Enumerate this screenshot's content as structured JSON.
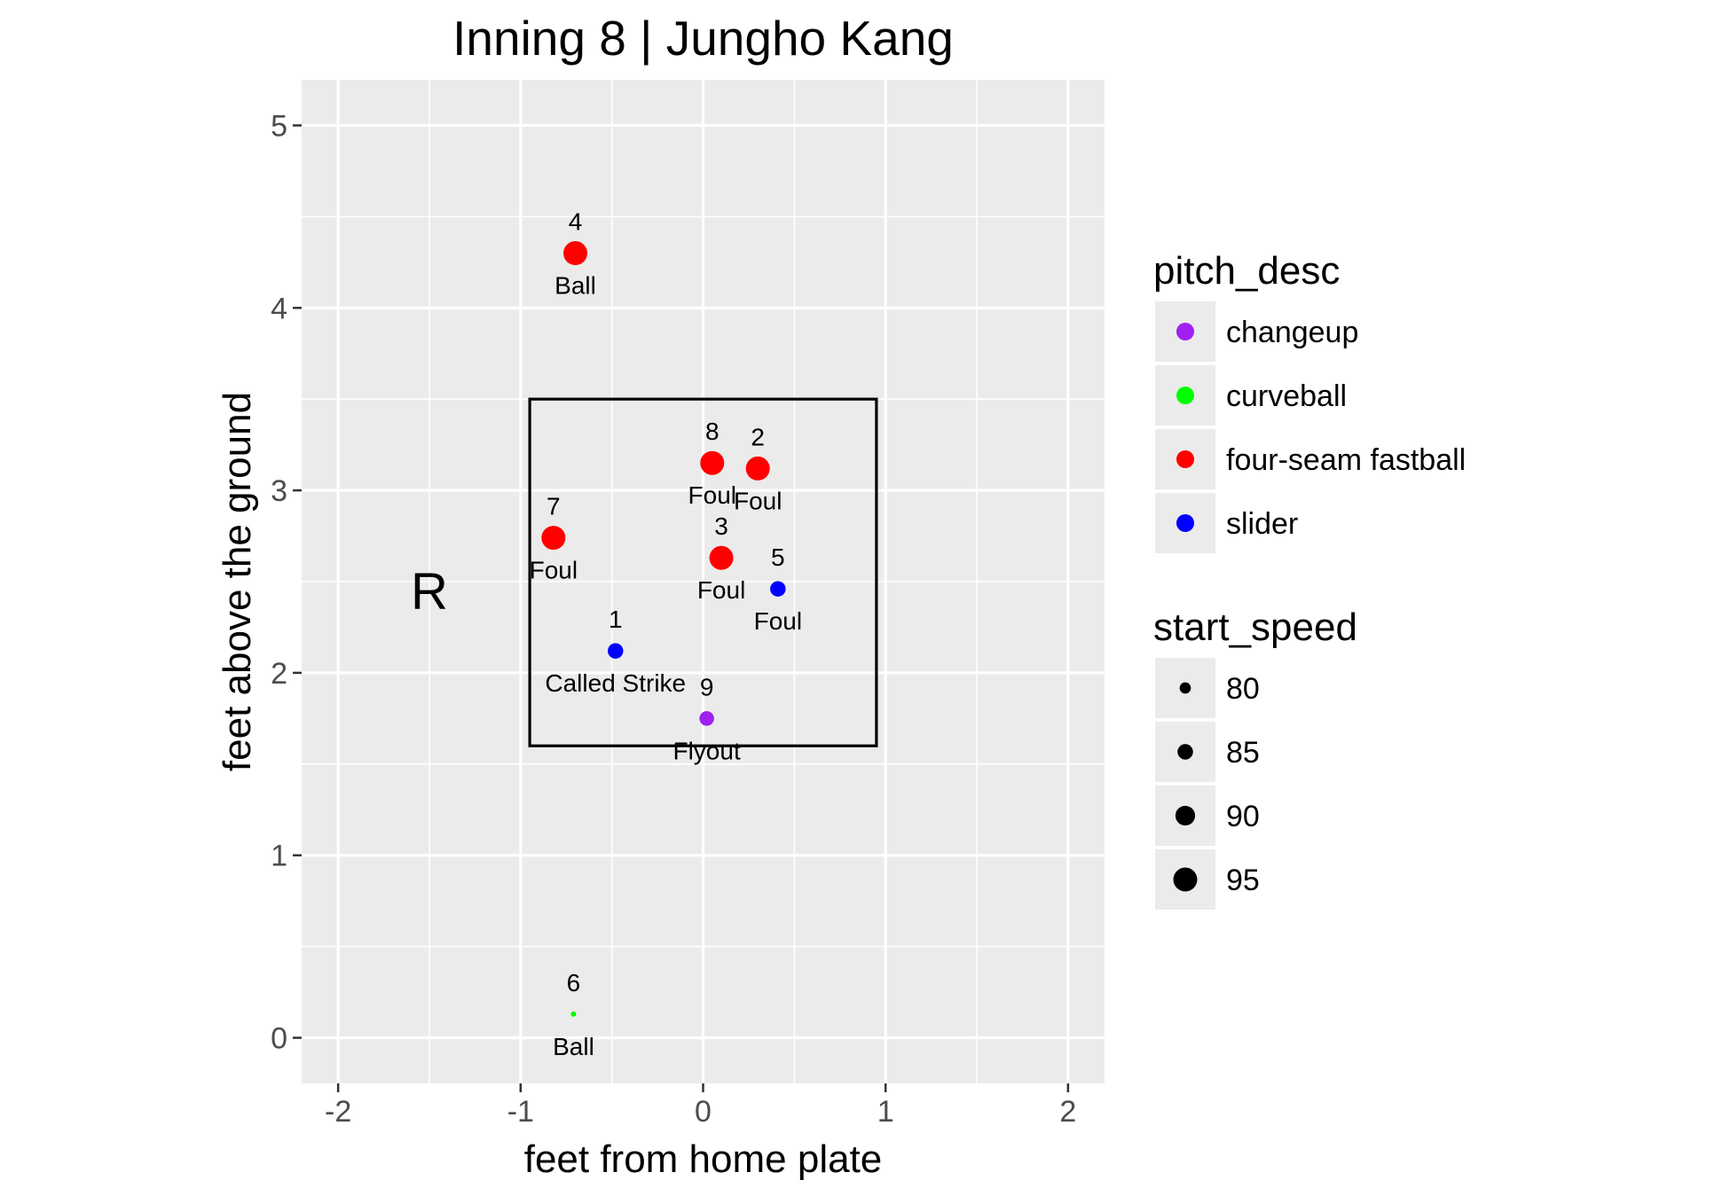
{
  "chart_data": {
    "type": "scatter",
    "title": "Inning 8  |  Jungho Kang",
    "xlabel": "feet from home plate",
    "ylabel": "feet above the ground",
    "xlim": [
      -2.2,
      2.2
    ],
    "ylim": [
      -0.25,
      5.25
    ],
    "x_ticks": [
      -2,
      -1,
      0,
      1,
      2
    ],
    "y_ticks": [
      0,
      1,
      2,
      3,
      4,
      5
    ],
    "grid": true,
    "batter_side": "R",
    "strike_zone": {
      "x": [
        -0.95,
        0.95
      ],
      "y": [
        1.6,
        3.5
      ]
    },
    "points": [
      {
        "x": -0.48,
        "y": 2.12,
        "num": "1",
        "des": "Called Strike",
        "pitch_desc": "slider",
        "start_speed": 85
      },
      {
        "x": 0.3,
        "y": 3.12,
        "num": "2",
        "des": "Foul",
        "pitch_desc": "four-seam fastball",
        "start_speed": 95
      },
      {
        "x": 0.1,
        "y": 2.63,
        "num": "3",
        "des": "Foul",
        "pitch_desc": "four-seam fastball",
        "start_speed": 95
      },
      {
        "x": -0.7,
        "y": 4.3,
        "num": "4",
        "des": "Ball",
        "pitch_desc": "four-seam fastball",
        "start_speed": 95
      },
      {
        "x": 0.41,
        "y": 2.46,
        "num": "5",
        "des": "Foul",
        "pitch_desc": "slider",
        "start_speed": 85
      },
      {
        "x": -0.71,
        "y": 0.13,
        "num": "6",
        "des": "Ball",
        "pitch_desc": "curveball",
        "start_speed": 73
      },
      {
        "x": -0.82,
        "y": 2.74,
        "num": "7",
        "des": "Foul",
        "pitch_desc": "four-seam fastball",
        "start_speed": 95
      },
      {
        "x": 0.05,
        "y": 3.15,
        "num": "8",
        "des": "Foul",
        "pitch_desc": "four-seam fastball",
        "start_speed": 95
      },
      {
        "x": 0.02,
        "y": 1.75,
        "num": "9",
        "des": "Flyout",
        "pitch_desc": "changeup",
        "start_speed": 84
      }
    ],
    "legend_color": {
      "title": "pitch_desc",
      "entries": [
        {
          "label": "changeup",
          "color": "#a020f0"
        },
        {
          "label": "curveball",
          "color": "#00ff00"
        },
        {
          "label": "four-seam fastball",
          "color": "#ff0000"
        },
        {
          "label": "slider",
          "color": "#0000ff"
        }
      ]
    },
    "legend_size": {
      "title": "start_speed",
      "entries": [
        {
          "label": "80",
          "value": 80
        },
        {
          "label": "85",
          "value": 85
        },
        {
          "label": "90",
          "value": 90
        },
        {
          "label": "95",
          "value": 95
        }
      ]
    },
    "legend_position": "right",
    "colors": {
      "panel_background": "#ebebeb",
      "grid_line": "#ffffff",
      "tick_label": "#4d4d4d",
      "strike_zone": "#000000"
    }
  }
}
